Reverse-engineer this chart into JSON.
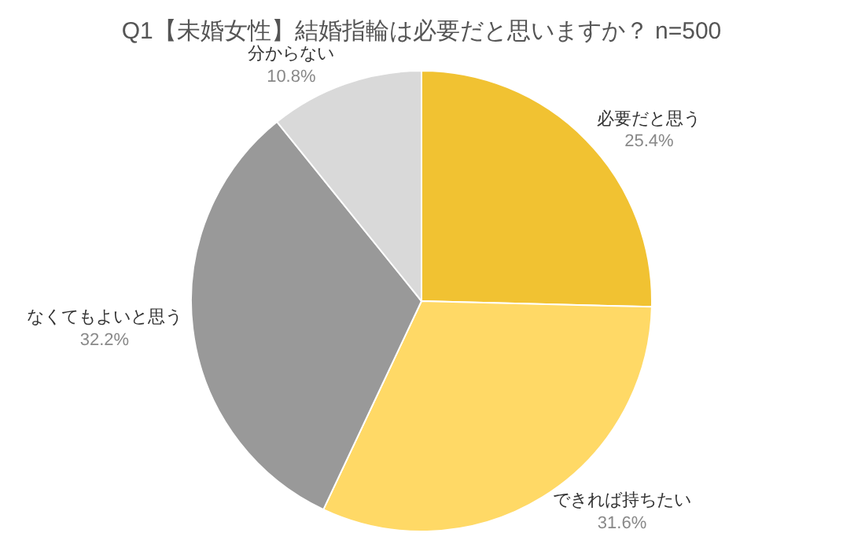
{
  "chart_data": {
    "type": "pie",
    "title": "Q1【未婚女性】結婚指輪は必要だと思いますか？ n=500",
    "categories": [
      "必要だと思う",
      "できれば持ちたい",
      "なくてもよいと思う",
      "分からない"
    ],
    "values": [
      25.4,
      31.6,
      32.2,
      10.8
    ],
    "value_labels": [
      "25.4%",
      "31.6%",
      "32.2%",
      "10.8%"
    ],
    "colors": [
      "#f1c232",
      "#ffd966",
      "#999999",
      "#d9d9d9"
    ],
    "legend": false
  }
}
